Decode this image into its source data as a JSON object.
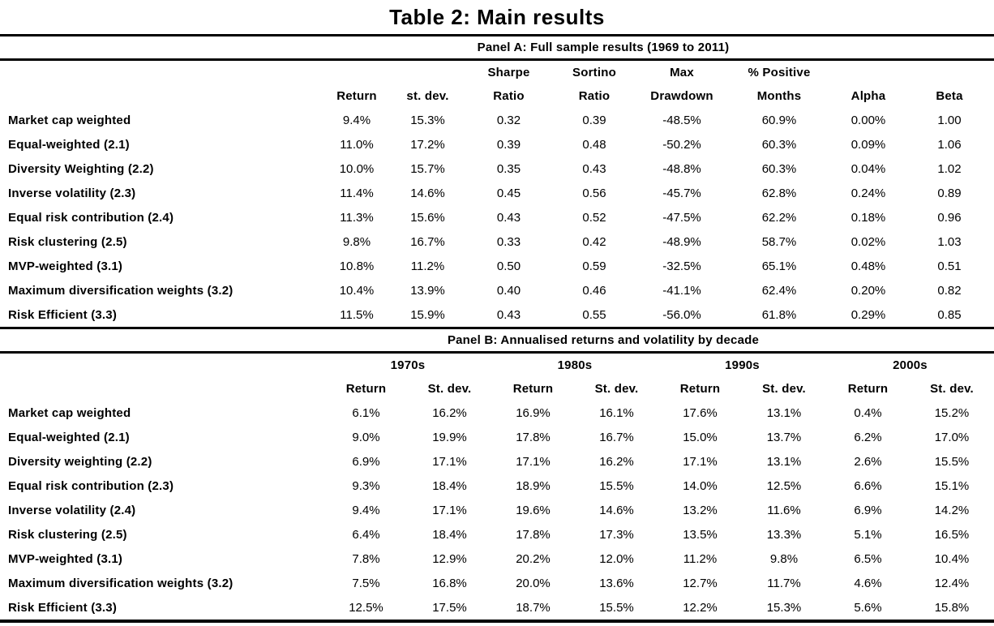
{
  "title": "Table 2: Main results",
  "panel_a": {
    "label": "Panel A: Full sample results (1969 to 2011)",
    "header_line1": [
      "",
      "",
      "Sharpe",
      "Sortino",
      "Max",
      "% Positive",
      "",
      ""
    ],
    "header_line2": [
      "Return",
      "st. dev.",
      "Ratio",
      "Ratio",
      "Drawdown",
      "Months",
      "Alpha",
      "Beta"
    ],
    "rows": [
      {
        "label": "Market cap weighted",
        "values": [
          "9.4%",
          "15.3%",
          "0.32",
          "0.39",
          "-48.5%",
          "60.9%",
          "0.00%",
          "1.00"
        ]
      },
      {
        "label": "Equal-weighted (2.1)",
        "values": [
          "11.0%",
          "17.2%",
          "0.39",
          "0.48",
          "-50.2%",
          "60.3%",
          "0.09%",
          "1.06"
        ]
      },
      {
        "label": "Diversity Weighting (2.2)",
        "values": [
          "10.0%",
          "15.7%",
          "0.35",
          "0.43",
          "-48.8%",
          "60.3%",
          "0.04%",
          "1.02"
        ]
      },
      {
        "label": "Inverse volatility (2.3)",
        "values": [
          "11.4%",
          "14.6%",
          "0.45",
          "0.56",
          "-45.7%",
          "62.8%",
          "0.24%",
          "0.89"
        ]
      },
      {
        "label": "Equal risk contribution (2.4)",
        "values": [
          "11.3%",
          "15.6%",
          "0.43",
          "0.52",
          "-47.5%",
          "62.2%",
          "0.18%",
          "0.96"
        ]
      },
      {
        "label": "Risk clustering (2.5)",
        "values": [
          "9.8%",
          "16.7%",
          "0.33",
          "0.42",
          "-48.9%",
          "58.7%",
          "0.02%",
          "1.03"
        ]
      },
      {
        "label": "MVP-weighted (3.1)",
        "values": [
          "10.8%",
          "11.2%",
          "0.50",
          "0.59",
          "-32.5%",
          "65.1%",
          "0.48%",
          "0.51"
        ]
      },
      {
        "label": "Maximum diversification weights (3.2)",
        "values": [
          "10.4%",
          "13.9%",
          "0.40",
          "0.46",
          "-41.1%",
          "62.4%",
          "0.20%",
          "0.82"
        ]
      },
      {
        "label": "Risk Efficient (3.3)",
        "values": [
          "11.5%",
          "15.9%",
          "0.43",
          "0.55",
          "-56.0%",
          "61.8%",
          "0.29%",
          "0.85"
        ]
      }
    ]
  },
  "panel_b": {
    "label": "Panel B: Annualised returns and volatility by decade",
    "decades": [
      "1970s",
      "1980s",
      "1990s",
      "2000s"
    ],
    "sub_headers": [
      "Return",
      "St. dev.",
      "Return",
      "St. dev.",
      "Return",
      "St. dev.",
      "Return",
      "St. dev."
    ],
    "rows": [
      {
        "label": "Market cap weighted",
        "values": [
          "6.1%",
          "16.2%",
          "16.9%",
          "16.1%",
          "17.6%",
          "13.1%",
          "0.4%",
          "15.2%"
        ]
      },
      {
        "label": "Equal-weighted (2.1)",
        "values": [
          "9.0%",
          "19.9%",
          "17.8%",
          "16.7%",
          "15.0%",
          "13.7%",
          "6.2%",
          "17.0%"
        ]
      },
      {
        "label": "Diversity weighting (2.2)",
        "values": [
          "6.9%",
          "17.1%",
          "17.1%",
          "16.2%",
          "17.1%",
          "13.1%",
          "2.6%",
          "15.5%"
        ]
      },
      {
        "label": "Equal risk contribution (2.3)",
        "values": [
          "9.3%",
          "18.4%",
          "18.9%",
          "15.5%",
          "14.0%",
          "12.5%",
          "6.6%",
          "15.1%"
        ]
      },
      {
        "label": "Inverse volatility (2.4)",
        "values": [
          "9.4%",
          "17.1%",
          "19.6%",
          "14.6%",
          "13.2%",
          "11.6%",
          "6.9%",
          "14.2%"
        ]
      },
      {
        "label": "Risk clustering (2.5)",
        "values": [
          "6.4%",
          "18.4%",
          "17.8%",
          "17.3%",
          "13.5%",
          "13.3%",
          "5.1%",
          "16.5%"
        ]
      },
      {
        "label": "MVP-weighted (3.1)",
        "values": [
          "7.8%",
          "12.9%",
          "20.2%",
          "12.0%",
          "11.2%",
          "9.8%",
          "6.5%",
          "10.4%"
        ]
      },
      {
        "label": "Maximum diversification weights (3.2)",
        "values": [
          "7.5%",
          "16.8%",
          "20.0%",
          "13.6%",
          "12.7%",
          "11.7%",
          "4.6%",
          "12.4%"
        ]
      },
      {
        "label": "Risk Efficient (3.3)",
        "values": [
          "12.5%",
          "17.5%",
          "18.7%",
          "15.5%",
          "12.2%",
          "15.3%",
          "5.6%",
          "15.8%"
        ]
      }
    ]
  }
}
